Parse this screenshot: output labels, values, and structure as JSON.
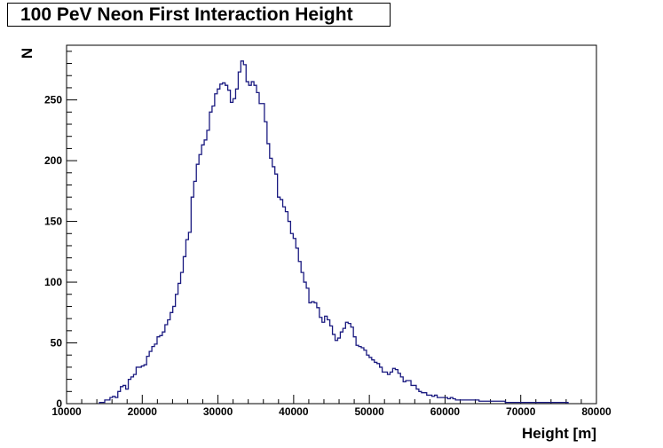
{
  "chart_data": {
    "type": "histogram",
    "title": "100 PeV Neon First Interaction Height",
    "xlabel": "Height [m]",
    "ylabel": "N",
    "xlim": [
      10000,
      80000
    ],
    "ylim": [
      0,
      295
    ],
    "xticks": [
      10000,
      20000,
      30000,
      40000,
      50000,
      60000,
      70000,
      80000
    ],
    "yticks": [
      0,
      50,
      100,
      150,
      200,
      250
    ],
    "grid": false,
    "line_color": "#1a1a80",
    "bin_edges": [
      14350,
      76250
    ],
    "values": [
      1,
      1,
      3,
      3,
      5,
      6,
      5,
      10,
      14,
      15,
      12,
      20,
      22,
      24,
      30,
      30,
      31,
      32,
      39,
      43,
      47,
      49,
      55,
      56,
      59,
      65,
      69,
      75,
      80,
      90,
      99,
      108,
      121,
      135,
      141,
      170,
      183,
      197,
      205,
      213,
      217,
      225,
      240,
      245,
      255,
      259,
      263,
      264,
      262,
      258,
      248,
      251,
      259,
      273,
      282,
      279,
      265,
      262,
      265,
      262,
      256,
      247,
      247,
      232,
      214,
      202,
      195,
      189,
      170,
      168,
      162,
      158,
      150,
      140,
      136,
      128,
      117,
      108,
      100,
      95,
      83,
      84,
      83,
      79,
      71,
      67,
      72,
      69,
      64,
      57,
      52,
      54,
      59,
      62,
      67,
      66,
      63,
      55,
      48,
      47,
      46,
      44,
      40,
      38,
      36,
      34,
      33,
      30,
      26,
      26,
      24,
      26,
      29,
      28,
      25,
      22,
      18,
      19,
      19,
      15,
      15,
      12,
      10,
      9,
      9,
      7,
      7,
      6,
      7,
      5,
      5,
      5,
      5,
      4,
      5,
      4,
      3,
      3,
      3,
      3,
      3,
      3,
      3,
      3,
      3,
      2,
      2,
      2,
      2,
      2,
      2,
      2,
      2,
      2,
      2,
      1,
      1,
      1,
      1,
      1,
      1,
      1,
      1,
      1,
      1,
      1,
      1,
      1,
      1,
      1,
      1,
      1,
      1,
      1,
      1,
      1,
      1,
      1,
      1,
      0,
      0,
      0,
      0,
      0,
      0,
      0,
      0,
      0,
      0,
      0,
      0,
      0,
      0,
      0,
      0,
      0,
      0,
      0,
      0,
      0,
      0,
      0,
      0,
      0,
      0,
      0,
      0,
      0,
      0,
      0,
      0,
      0,
      0,
      0,
      0,
      0,
      0,
      0,
      0,
      0,
      0,
      0,
      0,
      0,
      0,
      0,
      0,
      0,
      0,
      0,
      0,
      0,
      0,
      0,
      0,
      0,
      0,
      0,
      0,
      0
    ]
  }
}
